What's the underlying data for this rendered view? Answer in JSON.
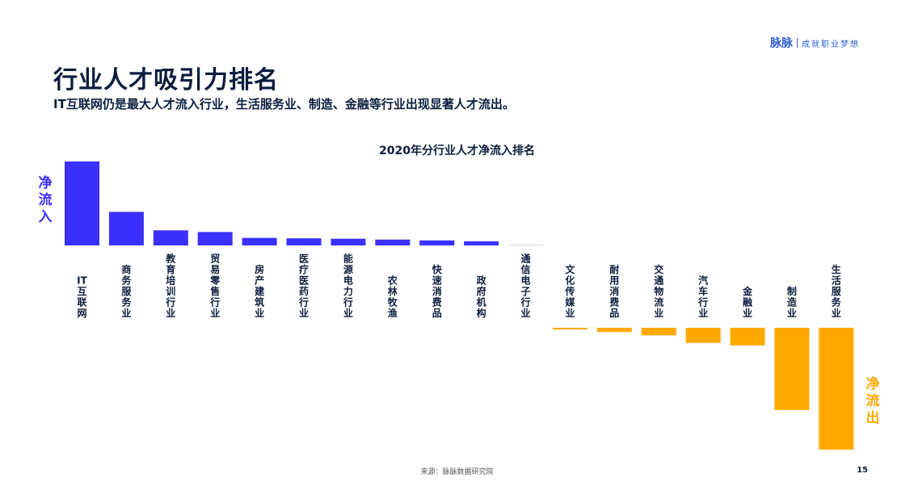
{
  "brand": {
    "logo": "脉脉",
    "slogan": "成就职业梦想"
  },
  "header": {
    "title": "行业人才吸引力排名",
    "subtitle": "IT互联网仍是最大人才流入行业，生活服务业、制造、金融等行业出现显著人才流出。"
  },
  "side_labels": {
    "inflow": "净流入",
    "outflow": "净流出"
  },
  "footer": {
    "source": "来源：脉脉数据研究院",
    "page": "15"
  },
  "colors": {
    "inflow": "#3b30ff",
    "outflow": "#ffa900",
    "text": "#0c1d3d",
    "axis": "#c9dcf2"
  },
  "chart_data": {
    "type": "bar",
    "title": "2020年分行业人才净流入排名",
    "xlabel": "",
    "ylabel": "",
    "categories": [
      "IT互联网",
      "商务服务业",
      "教育培训行业",
      "贸易零售行业",
      "房产建筑业",
      "医疗医药行业",
      "能源电力行业",
      "农林牧渔",
      "快速消费品",
      "政府机构",
      "通信电子行业",
      "文化传媒业",
      "耐用消费品",
      "交通物流业",
      "汽车行业",
      "金融业",
      "制造业",
      "生活服务业"
    ],
    "values": [
      100,
      40,
      18,
      16,
      9,
      8.5,
      8,
      7,
      6,
      5,
      1,
      -2,
      -5,
      -9,
      -18,
      -21,
      -98,
      -145
    ],
    "ylim": [
      -150,
      100
    ]
  }
}
